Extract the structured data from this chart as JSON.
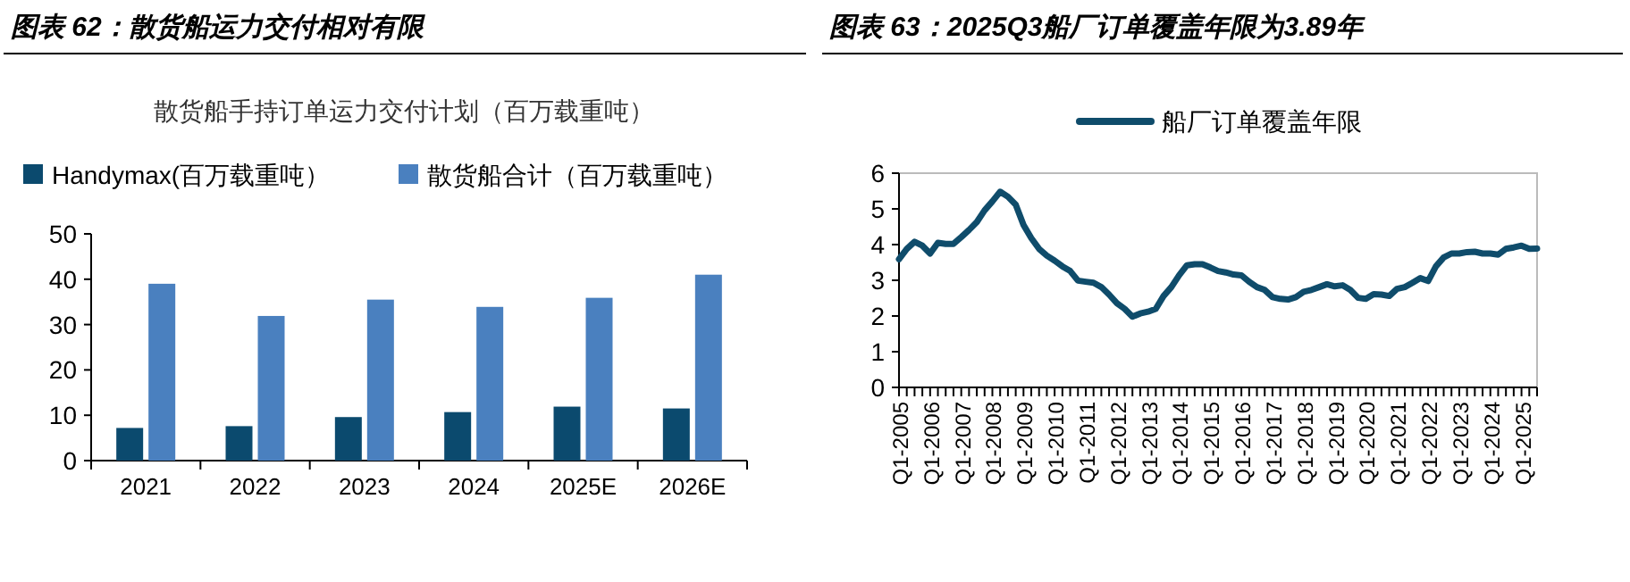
{
  "chart_data": [
    {
      "type": "bar",
      "title": "图表 62：散货船运力交付相对有限",
      "subtitle": "散货船手持订单运力交付计划（百万载重吨）",
      "categories": [
        "2021",
        "2022",
        "2023",
        "2024",
        "2025E",
        "2026E"
      ],
      "series": [
        {
          "name": "Handymax(百万载重吨）",
          "color": "#0b4a6e",
          "values": [
            7.2,
            7.6,
            9.6,
            10.7,
            11.9,
            11.5
          ]
        },
        {
          "name": "散货船合计（百万载重吨）",
          "color": "#4a80bf",
          "values": [
            39.0,
            31.9,
            35.5,
            33.9,
            35.9,
            41.0
          ]
        }
      ],
      "ylim": [
        0,
        50
      ],
      "yticks": [
        0,
        10,
        20,
        30,
        40,
        50
      ],
      "legend": "top",
      "grid": false
    },
    {
      "type": "line",
      "title": "图表 63：2025Q3船厂订单覆盖年限为3.89年",
      "categories": [
        "Q1-2005",
        null,
        null,
        null,
        "Q1-2006",
        null,
        null,
        null,
        "Q1-2007",
        null,
        null,
        null,
        "Q1-2008",
        null,
        null,
        null,
        "Q1-2009",
        null,
        null,
        null,
        "Q1-2010",
        null,
        null,
        null,
        "Q1-2011",
        null,
        null,
        null,
        "Q1-2012",
        null,
        null,
        null,
        "Q1-2013",
        null,
        null,
        null,
        "Q1-2014",
        null,
        null,
        null,
        "Q1-2015",
        null,
        null,
        null,
        "Q1-2016",
        null,
        null,
        null,
        "Q1-2017",
        null,
        null,
        null,
        "Q1-2018",
        null,
        null,
        null,
        "Q1-2019",
        null,
        null,
        null,
        "Q1-2020",
        null,
        null,
        null,
        "Q1-2021",
        null,
        null,
        null,
        "Q1-2022",
        null,
        null,
        null,
        "Q1-2023",
        null,
        null,
        null,
        "Q1-2024",
        null,
        null,
        null,
        "Q1-2025",
        null,
        null
      ],
      "series": [
        {
          "name": "船厂订单覆盖年限",
          "color": "#0f4c6b",
          "values": [
            3.59,
            3.88,
            4.08,
            3.97,
            3.75,
            4.05,
            4.02,
            4.02,
            4.21,
            4.41,
            4.63,
            4.96,
            5.21,
            5.48,
            5.34,
            5.12,
            4.55,
            4.18,
            3.88,
            3.69,
            3.55,
            3.39,
            3.26,
            2.99,
            2.96,
            2.93,
            2.81,
            2.6,
            2.36,
            2.2,
            1.98,
            2.07,
            2.12,
            2.2,
            2.56,
            2.81,
            3.14,
            3.42,
            3.45,
            3.45,
            3.36,
            3.26,
            3.22,
            3.16,
            3.14,
            2.96,
            2.81,
            2.73,
            2.53,
            2.48,
            2.46,
            2.53,
            2.68,
            2.73,
            2.81,
            2.89,
            2.83,
            2.86,
            2.73,
            2.51,
            2.48,
            2.61,
            2.6,
            2.56,
            2.76,
            2.81,
            2.93,
            3.06,
            2.98,
            3.39,
            3.64,
            3.75,
            3.75,
            3.79,
            3.8,
            3.75,
            3.75,
            3.72,
            3.88,
            3.92,
            3.97,
            3.88,
            3.89
          ]
        }
      ],
      "ylim": [
        0,
        6
      ],
      "yticks": [
        0,
        1,
        2,
        3,
        4,
        5,
        6
      ],
      "legend": "top",
      "grid": false,
      "marker": "none",
      "line_style": "solid"
    }
  ]
}
